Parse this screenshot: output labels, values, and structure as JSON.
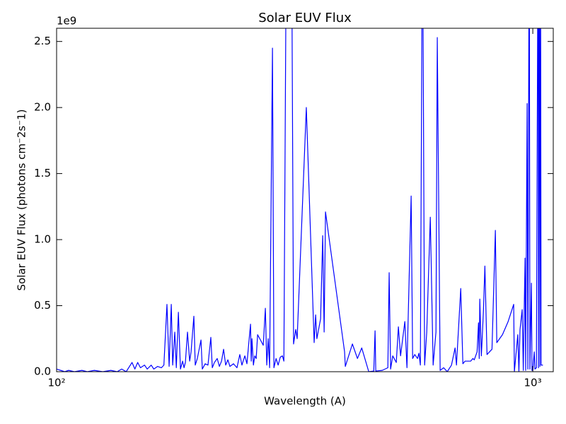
{
  "chart_data": {
    "type": "line",
    "title": "Solar EUV Flux",
    "x_label": "Wavelength (A)",
    "y_label": "Solar EUV Flux (photons cm⁻2s⁻1)",
    "y_offset_label": "1e9",
    "xscale": "log",
    "grid": false,
    "color": "#0000ff",
    "xlim": [
      100,
      1104
    ],
    "xticks": [
      {
        "value": 100,
        "label": "10²"
      },
      {
        "value": 1000,
        "label": "10³"
      }
    ],
    "ylim": [
      0,
      2.6
    ],
    "yticks": [
      {
        "value": 0,
        "label": "0.0"
      },
      0.5,
      {
        "value": 1,
        "label": "1.0"
      },
      1.5,
      {
        "value": 2,
        "label": "2.0"
      },
      2.5
    ],
    "x": [
      100,
      102,
      104,
      106,
      109,
      113,
      116,
      120,
      125,
      130,
      134,
      137,
      140,
      144,
      146,
      148,
      150,
      153,
      155,
      158,
      160,
      163,
      166,
      168,
      170.5,
      172.3,
      174.1,
      175.3,
      177.1,
      178.4,
      180.2,
      182,
      183.9,
      185.2,
      186.4,
      188.3,
      190.3,
      191.6,
      194.2,
      195.5,
      197.5,
      201,
      202.3,
      205.1,
      207.9,
      210.8,
      212.3,
      214.5,
      217.4,
      219.7,
      222,
      224.2,
      226.5,
      228.9,
      231.2,
      235.2,
      239.2,
      242.5,
      245,
      248.5,
      251,
      255.4,
      256.3,
      257.2,
      259,
      260.7,
      262.5,
      264.3,
      268,
      271.6,
      274.4,
      276.3,
      278.2,
      280.1,
      284,
      286,
      289,
      291.9,
      294.9,
      298,
      300.1,
      304,
      311.3,
      314.5,
      317.8,
      320,
      334.5,
      347.4,
      349.9,
      352,
      358.4,
      362.1,
      364.6,
      367,
      402.5,
      403.9,
      418,
      428.3,
      437.3,
      452.4,
      463.5,
      466.4,
      468,
      482.7,
      496.2,
      499.3,
      502.8,
      508,
      516.8,
      522.1,
      527.6,
      538.6,
      544.2,
      555.3,
      559.3,
      565.1,
      572.6,
      576.6,
      580.6,
      586.6,
      592.7,
      598.8,
      609.2,
      617.6,
      626.1,
      630.1,
      638.9,
      649.9,
      661.2,
      674.9,
      686.7,
      691.4,
      705.8,
      713.1,
      720.7,
      740.7,
      748.4,
      753.5,
      763.8,
      769.1,
      771.8,
      774,
      779.7,
      784,
      787.8,
      793.2,
      801.4,
      820.9,
      834.4,
      840.2,
      863.5,
      887.6,
      911.7,
      914.8,
      930,
      935,
      940.1,
      950,
      955,
      963,
      966,
      972.9,
      976.3,
      983,
      986,
      993.2,
      996,
      1000,
      1007.2,
      1010,
      1017.6,
      1026,
      1028,
      1031.6,
      1035,
      1038,
      1041,
      1050
    ],
    "values": [
      0.02,
      0.01,
      0,
      0.01,
      0,
      0.01,
      0,
      0.01,
      0,
      0.01,
      0,
      0.02,
      0,
      0.07,
      0.02,
      0.07,
      0.03,
      0.05,
      0.02,
      0.05,
      0.02,
      0.04,
      0.03,
      0.05,
      0.51,
      0.04,
      0.51,
      0.05,
      0.3,
      0.03,
      0.45,
      0.02,
      0.08,
      0.03,
      0.07,
      0.3,
      0.08,
      0.15,
      0.42,
      0.05,
      0.1,
      0.24,
      0.02,
      0.06,
      0.05,
      0.26,
      0.03,
      0.07,
      0.1,
      0.04,
      0.08,
      0.17,
      0.05,
      0.09,
      0.04,
      0.06,
      0.03,
      0.13,
      0.05,
      0.12,
      0.06,
      0.36,
      0.08,
      0.25,
      0.05,
      0.12,
      0.1,
      0.28,
      0.24,
      0.2,
      0.48,
      0.05,
      0.25,
      0.03,
      2.45,
      0.03,
      0.1,
      0.05,
      0.11,
      0.12,
      0.08,
      3.6,
      3.6,
      0.21,
      0.32,
      0.25,
      2.0,
      0.22,
      0.43,
      0.25,
      0.4,
      1.03,
      0.3,
      1.21,
      0.15,
      0.04,
      0.21,
      0.1,
      0.18,
      0,
      0.005,
      0.31,
      0.005,
      0.01,
      0.03,
      0.75,
      0.02,
      0.12,
      0.07,
      0.34,
      0.12,
      0.38,
      0.03,
      1.33,
      0.1,
      0.13,
      0.1,
      0.14,
      0.05,
      3.6,
      0.05,
      0.3,
      1.17,
      0.05,
      0.3,
      2.53,
      0.01,
      0.03,
      0,
      0.05,
      0.18,
      0.05,
      0.63,
      0.06,
      0.08,
      0.08,
      0.1,
      0.09,
      0.15,
      0.37,
      0.1,
      0.55,
      0.12,
      0.3,
      0.47,
      0.8,
      0.13,
      0.17,
      1.07,
      0.22,
      0.28,
      0.38,
      0.51,
      0,
      0.28,
      0,
      0.32,
      0.47,
      0.01,
      0.86,
      0.01,
      2.03,
      0.02,
      3.6,
      0.02,
      0.67,
      0.01,
      0.01,
      0.15,
      0.02,
      0.03,
      3.6,
      0.03,
      3.6,
      0.04,
      3.6,
      0.05,
      0.05
    ]
  }
}
